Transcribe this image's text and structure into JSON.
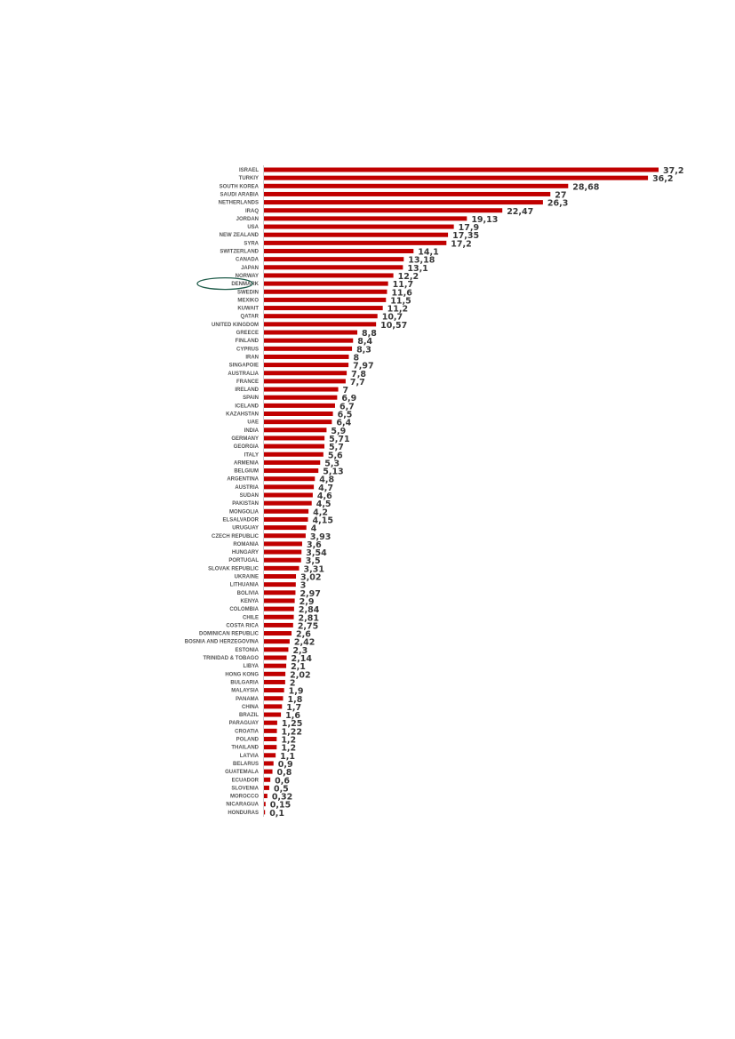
{
  "chart_data": {
    "type": "bar",
    "orientation": "horizontal",
    "title": "",
    "xlabel": "",
    "ylabel": "",
    "xlim": [
      0,
      37.2
    ],
    "grid": false,
    "bar_color": "#c00000",
    "highlight": {
      "category": "DENMARK",
      "marker": "ellipse",
      "color": "#1f5c4a"
    },
    "categories": [
      "ISRAEL",
      "TURKIY",
      "SOUTH KOREA",
      "SAUDI ARABIA",
      "NETHERLANDS",
      "IRAQ",
      "JORDAN",
      "USA",
      "NEW ZEALAND",
      "SYRA",
      "SWITZERLAND",
      "CANADA",
      "JAPAN",
      "NORWAY",
      "DENMARK",
      "SWEDIN",
      "MEXIKO",
      "KUWAIT",
      "QATAR",
      "UNITED KINGDOM",
      "GREECE",
      "FINLAND",
      "CYPRUS",
      "IRAN",
      "SINGAPOIE",
      "AUSTRALIA",
      "FRANCE",
      "IRELAND",
      "SPAIN",
      "ICELAND",
      "KAZAHSTAN",
      "UAE",
      "INDIA",
      "GERMANY",
      "GEORGIA",
      "ITALY",
      "ARMENIA",
      "BELGIUM",
      "ARGENTINA",
      "AUSTRIA",
      "SUDAN",
      "PAKISTAN",
      "MONGOLIA",
      "ELSALVADOR",
      "URUGUAY",
      "CZECH REPUBLIC",
      "ROMANIA",
      "HUNGARY",
      "PORTUGAL",
      "SLOVAK REPUBLIC",
      "UKRAINE",
      "LITHUANIA",
      "BOLIVIA",
      "KENYA",
      "COLOMBIA",
      "CHILE",
      "COSTA RICA",
      "DOMINICAN REPUBLIC",
      "BOSNIA AND HERZEGOVINA",
      "ESTONIA",
      "TRINIDAD & TOBAGO",
      "LIBYA",
      "HONG KONG",
      "BULGARIA",
      "MALAYSIA",
      "PANAMA",
      "CHINA",
      "BRAZIL",
      "PARAGUAY",
      "CROATIA",
      "POLAND",
      "THAILAND",
      "LATVIA",
      "BELARUS",
      "GUATEMALA",
      "ECUADOR",
      "SLOVENIA",
      "MOROCCO",
      "NICARAGUA",
      "HONDURAS"
    ],
    "values": [
      37.2,
      36.2,
      28.68,
      27,
      26.3,
      22.47,
      19.13,
      17.9,
      17.35,
      17.2,
      14.1,
      13.18,
      13.1,
      12.2,
      11.7,
      11.6,
      11.5,
      11.2,
      10.7,
      10.57,
      8.8,
      8.4,
      8.3,
      8,
      7.97,
      7.8,
      7.7,
      7,
      6.9,
      6.7,
      6.5,
      6.4,
      5.9,
      5.71,
      5.7,
      5.6,
      5.3,
      5.13,
      4.8,
      4.7,
      4.6,
      4.5,
      4.2,
      4.15,
      4,
      3.93,
      3.6,
      3.54,
      3.5,
      3.31,
      3.02,
      3,
      2.97,
      2.9,
      2.84,
      2.81,
      2.75,
      2.6,
      2.42,
      2.3,
      2.14,
      2.1,
      2.02,
      2,
      1.9,
      1.8,
      1.7,
      1.6,
      1.25,
      1.22,
      1.2,
      1.2,
      1.1,
      0.9,
      0.8,
      0.6,
      0.5,
      0.32,
      0.15,
      0.1
    ],
    "value_labels": [
      "37,2",
      "36,2",
      "28,68",
      "27",
      "26,3",
      "22,47",
      "19,13",
      "17,9",
      "17,35",
      "17,2",
      "14,1",
      "13,18",
      "13,1",
      "12,2",
      "11,7",
      "11,6",
      "11,5",
      "11,2",
      "10,7",
      "10,57",
      "8,8",
      "8,4",
      "8,3",
      "8",
      "7,97",
      "7,8",
      "7,7",
      "7",
      "6,9",
      "6,7",
      "6,5",
      "6,4",
      "5,9",
      "5,71",
      "5,7",
      "5,6",
      "5,3",
      "5,13",
      "4,8",
      "4,7",
      "4,6",
      "4,5",
      "4,2",
      "4,15",
      "4",
      "3,93",
      "3,6",
      "3,54",
      "3,5",
      "3,31",
      "3,02",
      "3",
      "2,97",
      "2,9",
      "2,84",
      "2,81",
      "2,75",
      "2,6",
      "2,42",
      "2,3",
      "2,14",
      "2,1",
      "2,02",
      "2",
      "1,9",
      "1,8",
      "1,7",
      "1,6",
      "1,25",
      "1,22",
      "1,2",
      "1,2",
      "1,1",
      "0,9",
      "0,8",
      "0,6",
      "0,5",
      "0,32",
      "0,15",
      "0,1"
    ]
  }
}
